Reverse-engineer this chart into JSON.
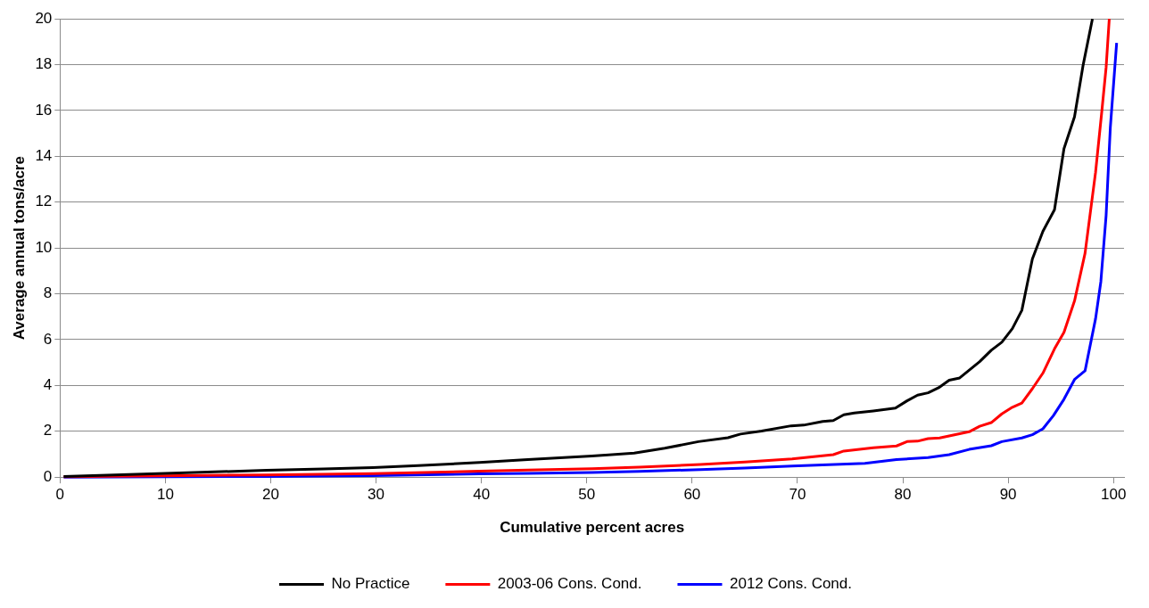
{
  "chart_data": {
    "type": "line",
    "xlabel": "Cumulative percent acres",
    "ylabel": "Average annual tons/acre",
    "xlim": [
      0,
      101
    ],
    "xticks": [
      0,
      10,
      20,
      30,
      40,
      50,
      60,
      70,
      80,
      90,
      100
    ],
    "ylim": [
      0,
      20
    ],
    "yticks": [
      0,
      2,
      4,
      6,
      8,
      10,
      12,
      14,
      16,
      18,
      20
    ],
    "grid": "y",
    "legend": "bottom",
    "marker": "none",
    "line_style": "solid",
    "series": [
      {
        "name": "No Practice",
        "color": "#000000",
        "x": [
          0.35,
          10,
          19.6,
          25,
          29.7,
          34,
          39.8,
          44.4,
          50.5,
          54.5,
          57.4,
          60.6,
          63.4,
          64.6,
          66.6,
          69.4,
          70.6,
          72.4,
          73.4,
          74.4,
          75.4,
          77.2,
          79.3,
          80.4,
          81.4,
          82.4,
          83.4,
          84.4,
          85.4,
          87.3,
          88.4,
          89.4,
          90.4,
          91.3,
          92.3,
          93.3,
          94.4,
          95.3,
          96.3,
          97.1,
          98.0
        ],
        "values": [
          0.03,
          0.16,
          0.3,
          0.36,
          0.42,
          0.5,
          0.64,
          0.77,
          0.92,
          1.05,
          1.26,
          1.55,
          1.72,
          1.88,
          2.01,
          2.24,
          2.27,
          2.43,
          2.47,
          2.72,
          2.8,
          2.89,
          3.01,
          3.33,
          3.58,
          3.68,
          3.9,
          4.23,
          4.33,
          5.04,
          5.54,
          5.89,
          6.48,
          7.28,
          9.52,
          10.73,
          11.67,
          14.34,
          15.73,
          17.94,
          20
        ]
      },
      {
        "name": "2003-06 Cons. Cond.",
        "color": "#ff0000",
        "x": [
          0.35,
          19.6,
          29.7,
          39.8,
          44.4,
          50.5,
          55,
          60.8,
          65,
          69.5,
          73.4,
          74.4,
          77.2,
          79.4,
          80.4,
          81.4,
          82.4,
          83.5,
          86.3,
          87.3,
          88.4,
          89.4,
          90.4,
          91.3,
          92.3,
          93.3,
          94.4,
          95.3,
          96.3,
          97.3,
          98.3,
          98.9,
          99.3,
          99.6
        ],
        "values": [
          0.02,
          0.1,
          0.15,
          0.26,
          0.31,
          0.37,
          0.44,
          0.55,
          0.66,
          0.8,
          0.98,
          1.14,
          1.28,
          1.36,
          1.55,
          1.57,
          1.68,
          1.71,
          1.98,
          2.22,
          2.38,
          2.76,
          3.05,
          3.23,
          3.86,
          4.54,
          5.6,
          6.32,
          7.69,
          9.77,
          13.31,
          16,
          17.88,
          20
        ]
      },
      {
        "name": "2012 Cons. Cond.",
        "color": "#0000ff",
        "x": [
          0.35,
          19.6,
          29.7,
          39.8,
          44.4,
          50.5,
          55,
          60.8,
          65,
          69.5,
          76.4,
          79.4,
          82.4,
          84.4,
          86.3,
          88.4,
          89.4,
          91.3,
          92.3,
          93.3,
          94.3,
          95.3,
          96.3,
          97.3,
          98.3,
          98.8,
          99.3,
          99.7,
          100.3
        ],
        "values": [
          0,
          0.03,
          0.07,
          0.14,
          0.16,
          0.2,
          0.25,
          0.33,
          0.4,
          0.48,
          0.6,
          0.77,
          0.85,
          0.98,
          1.21,
          1.37,
          1.55,
          1.71,
          1.85,
          2.11,
          2.69,
          3.4,
          4.26,
          4.64,
          6.92,
          8.53,
          11.42,
          15.26,
          18.95
        ]
      }
    ]
  }
}
